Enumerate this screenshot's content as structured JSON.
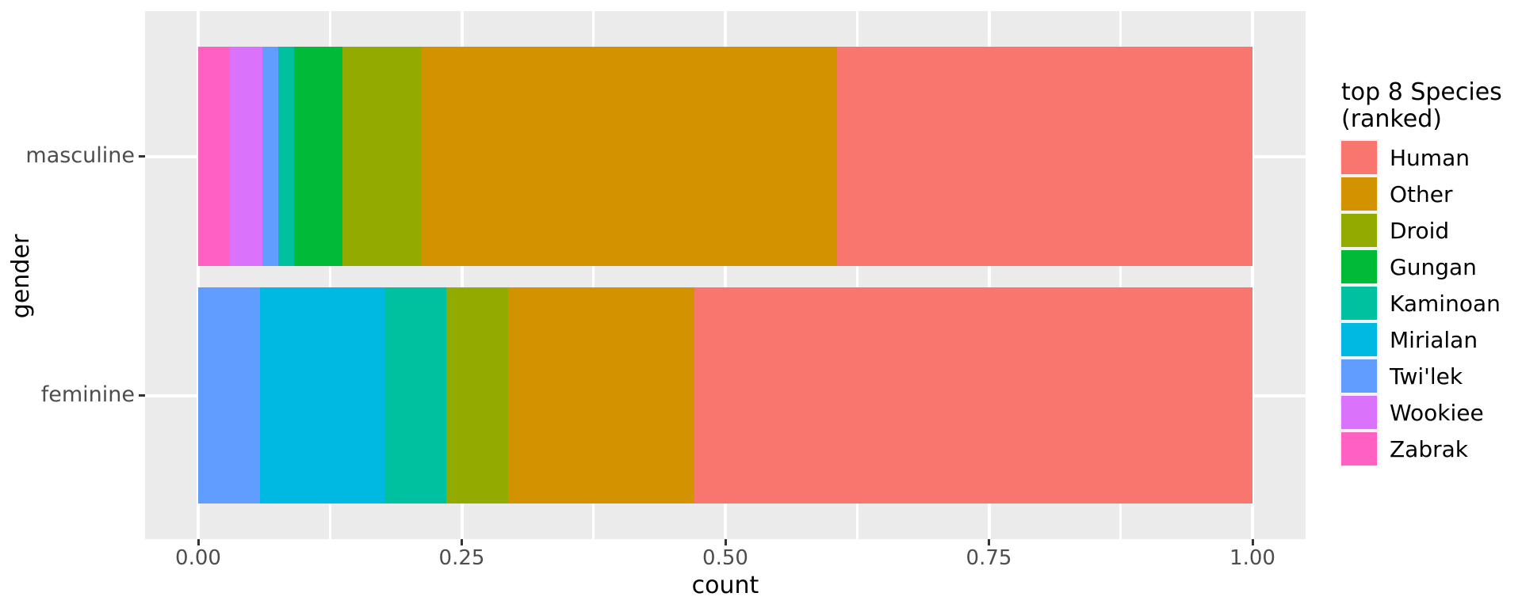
{
  "figure": {
    "background": "#FFFFFF",
    "panel_background": "#EBEBEB",
    "grid_color": "#FFFFFF",
    "tick_mark_color": "#333333",
    "axis_text_color": "#4D4D4D",
    "axis_title_color": "#000000"
  },
  "chart_data": {
    "type": "bar",
    "orientation": "horizontal",
    "stacked": true,
    "normalized_to_proportion": true,
    "title": "",
    "xlabel": "count",
    "ylabel": "gender",
    "xlim": [
      0,
      1
    ],
    "grid": true,
    "categories": [
      "masculine",
      "feminine"
    ],
    "x_ticks": [
      {
        "label": "0.00",
        "value": 0
      },
      {
        "label": "0.25",
        "value": 0.25
      },
      {
        "label": "0.50",
        "value": 0.5
      },
      {
        "label": "0.75",
        "value": 0.75
      },
      {
        "label": "1.00",
        "value": 1
      }
    ],
    "x_minor_ticks": [
      0.125,
      0.375,
      0.625,
      0.875
    ],
    "legend": {
      "position": "right",
      "title_lines": [
        "top 8 Species",
        "(ranked)"
      ],
      "order": [
        "Human",
        "Other",
        "Droid",
        "Gungan",
        "Kaminoan",
        "Mirialan",
        "Twi'lek",
        "Wookiee",
        "Zabrak"
      ]
    },
    "stack_order_left_to_right": [
      "Zabrak",
      "Wookiee",
      "Twi'lek",
      "Mirialan",
      "Kaminoan",
      "Gungan",
      "Droid",
      "Other",
      "Human"
    ],
    "series": [
      {
        "name": "Human",
        "color": "#F8766D",
        "values": {
          "masculine": 0.3939,
          "feminine": 0.5294
        }
      },
      {
        "name": "Other",
        "color": "#D39200",
        "values": {
          "masculine": 0.3939,
          "feminine": 0.1765
        }
      },
      {
        "name": "Droid",
        "color": "#93AA00",
        "values": {
          "masculine": 0.0758,
          "feminine": 0.0588
        }
      },
      {
        "name": "Gungan",
        "color": "#00BA38",
        "values": {
          "masculine": 0.0455,
          "feminine": 0
        }
      },
      {
        "name": "Kaminoan",
        "color": "#00C19F",
        "values": {
          "masculine": 0.0152,
          "feminine": 0.0588
        }
      },
      {
        "name": "Mirialan",
        "color": "#00B9E3",
        "values": {
          "masculine": 0,
          "feminine": 0.1176
        }
      },
      {
        "name": "Twi'lek",
        "color": "#619CFF",
        "values": {
          "masculine": 0.0152,
          "feminine": 0.0588
        }
      },
      {
        "name": "Wookiee",
        "color": "#DB72FB",
        "values": {
          "masculine": 0.0303,
          "feminine": 0
        }
      },
      {
        "name": "Zabrak",
        "color": "#FF61C3",
        "values": {
          "masculine": 0.0303,
          "feminine": 0
        }
      }
    ]
  }
}
